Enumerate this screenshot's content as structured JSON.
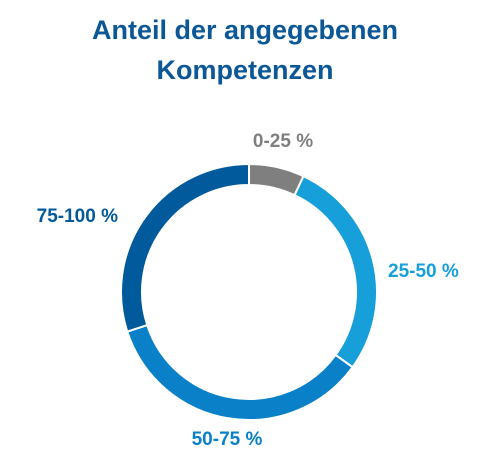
{
  "chart_data": {
    "type": "donut",
    "title": "Anteil der angegebenen Kompetenzen",
    "categories": [
      "0-25 %",
      "25-50 %",
      "50-75 %",
      "75-100 %"
    ],
    "values": [
      7,
      28,
      35,
      30
    ],
    "colors": [
      "#7f7f80",
      "#179fda",
      "#0a80c8",
      "#015a9b"
    ]
  }
}
